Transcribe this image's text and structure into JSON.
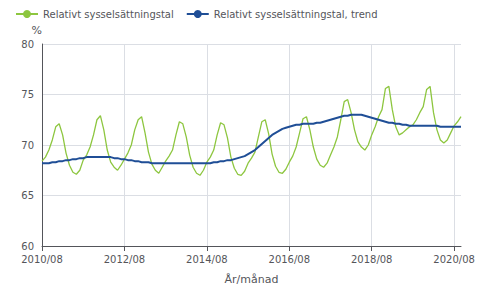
{
  "chart_data": {
    "type": "line",
    "xlabel": "År/månad",
    "ylabel": "%",
    "categories": [
      "2010/08",
      null,
      null,
      null,
      null,
      null,
      null,
      null,
      null,
      null,
      null,
      null,
      null,
      null,
      null,
      null,
      null,
      null,
      null,
      null,
      null,
      null,
      null,
      null,
      "2012/08",
      null,
      null,
      null,
      null,
      null,
      null,
      null,
      null,
      null,
      null,
      null,
      null,
      null,
      null,
      null,
      null,
      null,
      null,
      null,
      null,
      null,
      null,
      null,
      "2014/08",
      null,
      null,
      null,
      null,
      null,
      null,
      null,
      null,
      null,
      null,
      null,
      null,
      null,
      null,
      null,
      null,
      null,
      null,
      null,
      null,
      null,
      null,
      null,
      "2016/08",
      null,
      null,
      null,
      null,
      null,
      null,
      null,
      null,
      null,
      null,
      null,
      null,
      null,
      null,
      null,
      null,
      null,
      null,
      null,
      null,
      null,
      null,
      null,
      "2018/08",
      null,
      null,
      null,
      null,
      null,
      null,
      null,
      null,
      null,
      null,
      null,
      null,
      null,
      null,
      null,
      null,
      null,
      null,
      null,
      null,
      null,
      null,
      null,
      "2020/08",
      null,
      null
    ],
    "ylim": [
      60,
      80
    ],
    "yticks": [
      60,
      65,
      70,
      75,
      80
    ],
    "grid": true,
    "legend": "upper left",
    "series": [
      {
        "name": "Relativt sysselsättningstal",
        "color": "#8dc63f",
        "values": [
          68.4,
          68.8,
          69.5,
          70.5,
          71.8,
          72.1,
          71.0,
          69.2,
          68.0,
          67.3,
          67.1,
          67.5,
          68.5,
          69.0,
          69.8,
          71.0,
          72.5,
          72.9,
          71.5,
          69.5,
          68.3,
          67.8,
          67.5,
          68.0,
          68.6,
          69.2,
          70.0,
          71.5,
          72.5,
          72.8,
          71.2,
          69.3,
          68.1,
          67.5,
          67.2,
          67.8,
          68.4,
          68.9,
          69.5,
          71.0,
          72.3,
          72.1,
          70.8,
          69.0,
          67.8,
          67.2,
          67.0,
          67.5,
          68.3,
          68.8,
          69.5,
          71.0,
          72.2,
          72.0,
          70.7,
          68.8,
          67.7,
          67.1,
          67.0,
          67.4,
          68.2,
          68.7,
          69.3,
          70.8,
          72.3,
          72.5,
          71.1,
          69.1,
          67.9,
          67.3,
          67.2,
          67.6,
          68.3,
          68.9,
          69.8,
          71.2,
          72.6,
          72.8,
          71.5,
          69.8,
          68.6,
          68.0,
          67.8,
          68.2,
          69.0,
          69.8,
          70.8,
          72.5,
          74.3,
          74.5,
          73.2,
          71.5,
          70.3,
          69.8,
          69.5,
          70.0,
          71.0,
          71.8,
          72.8,
          73.5,
          75.6,
          75.8,
          73.5,
          71.8,
          71.0,
          71.2,
          71.5,
          71.8,
          72.0,
          72.5,
          73.2,
          73.8,
          75.5,
          75.8,
          73.2,
          71.5,
          70.5,
          70.2,
          70.5,
          71.2,
          71.9,
          72.3,
          72.8
        ]
      },
      {
        "name": "Relativt sysselsättningstal, trend",
        "color": "#1f4e96",
        "values": [
          68.2,
          68.2,
          68.2,
          68.3,
          68.3,
          68.4,
          68.4,
          68.5,
          68.5,
          68.6,
          68.6,
          68.7,
          68.7,
          68.8,
          68.8,
          68.8,
          68.8,
          68.8,
          68.8,
          68.8,
          68.8,
          68.7,
          68.7,
          68.6,
          68.6,
          68.5,
          68.5,
          68.4,
          68.4,
          68.3,
          68.3,
          68.3,
          68.2,
          68.2,
          68.2,
          68.2,
          68.2,
          68.2,
          68.2,
          68.2,
          68.2,
          68.2,
          68.2,
          68.2,
          68.2,
          68.2,
          68.2,
          68.2,
          68.2,
          68.2,
          68.3,
          68.3,
          68.4,
          68.4,
          68.5,
          68.5,
          68.6,
          68.7,
          68.8,
          68.9,
          69.1,
          69.3,
          69.5,
          69.8,
          70.1,
          70.4,
          70.7,
          71.0,
          71.2,
          71.4,
          71.6,
          71.7,
          71.8,
          71.9,
          72.0,
          72.0,
          72.1,
          72.1,
          72.1,
          72.1,
          72.2,
          72.2,
          72.3,
          72.4,
          72.5,
          72.6,
          72.7,
          72.8,
          72.9,
          72.9,
          73.0,
          73.0,
          73.0,
          73.0,
          72.9,
          72.8,
          72.7,
          72.6,
          72.5,
          72.4,
          72.3,
          72.2,
          72.2,
          72.1,
          72.1,
          72.0,
          72.0,
          71.9,
          71.9,
          71.9,
          71.9,
          71.9,
          71.9,
          71.9,
          71.9,
          71.9,
          71.8,
          71.8,
          71.8,
          71.8,
          71.8,
          71.8,
          71.8
        ]
      }
    ]
  }
}
